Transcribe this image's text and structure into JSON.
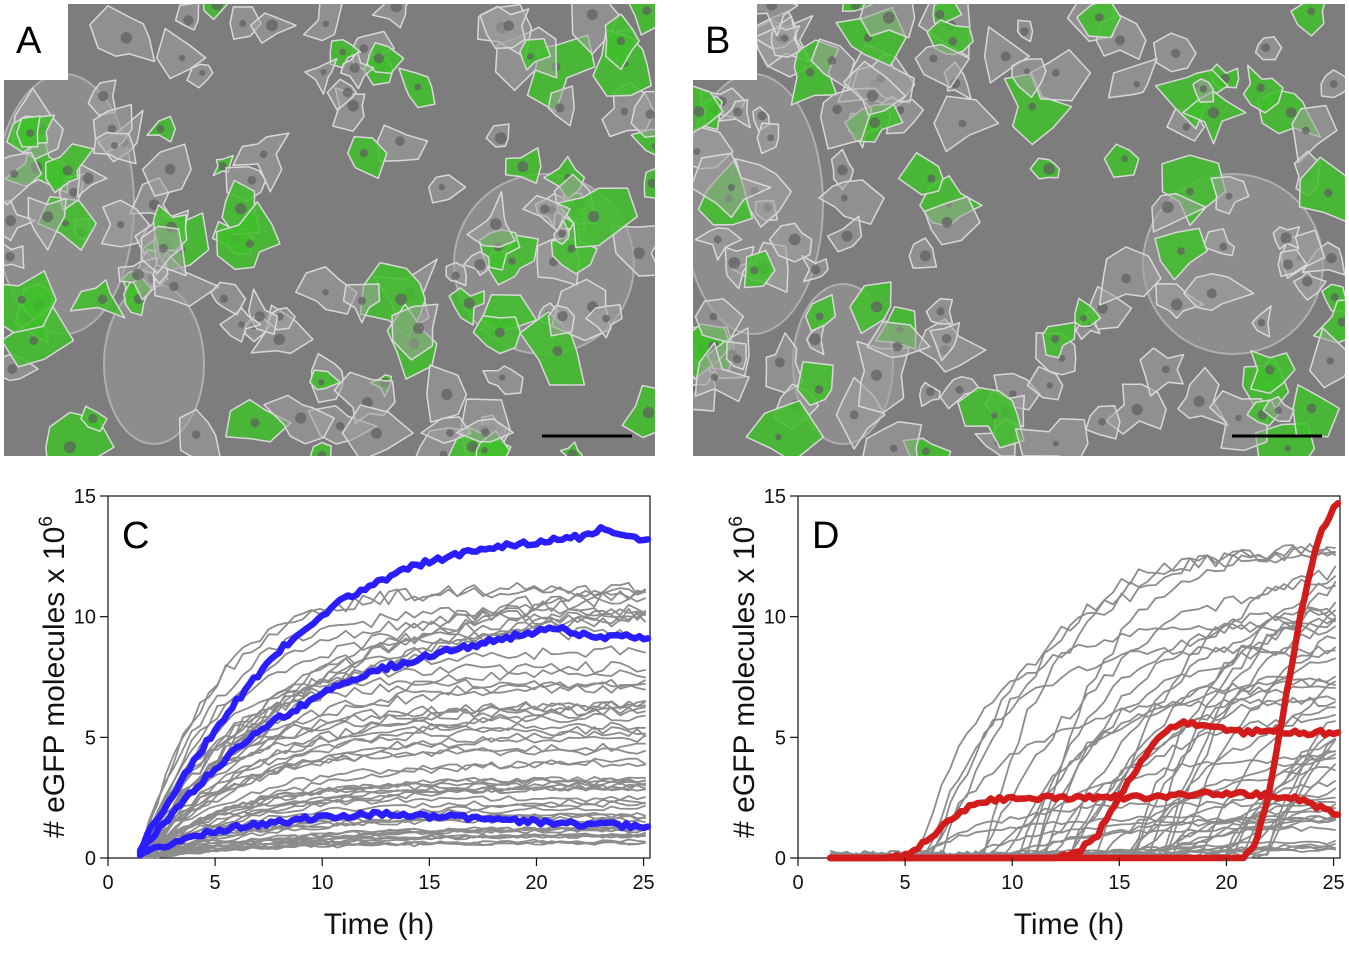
{
  "panels": {
    "A": {
      "letter": "A"
    },
    "B": {
      "letter": "B"
    }
  },
  "colors": {
    "photo_background": "#7d7d7d",
    "cell_green": "#3fbf2a",
    "highlight_blue": "#2a1eff",
    "highlight_red": "#d21c1c",
    "background_traces": "#8c8c8c",
    "scale_bar": "#000000"
  },
  "chart_data": [
    {
      "panel": "C",
      "type": "line",
      "xlabel": "Time (h)",
      "ylabel": "# eGFP molecules x 10",
      "ylabel_superscript": "6",
      "xlim": [
        0,
        25.3
      ],
      "ylim": [
        0,
        15
      ],
      "xticks": [
        0,
        5,
        10,
        15,
        20,
        25
      ],
      "yticks": [
        0,
        5,
        10,
        15
      ],
      "grid": false,
      "background_traces": {
        "count": 60,
        "x_start": 1.5,
        "x_end": 25.2,
        "y_max_range": [
          0.6,
          14.3
        ]
      },
      "series": [
        {
          "color": "#2a1eff",
          "x": [
            1.5,
            2,
            3,
            4,
            5,
            6,
            7,
            8,
            9,
            10,
            11,
            12,
            13,
            14,
            15,
            16,
            17,
            18,
            19,
            20,
            21,
            22,
            23,
            24,
            25.2
          ],
          "values": [
            0.3,
            1.2,
            2.6,
            4.0,
            5.3,
            6.5,
            7.6,
            8.6,
            9.4,
            10.1,
            10.7,
            11.2,
            11.6,
            12.0,
            12.3,
            12.5,
            12.7,
            12.9,
            13.0,
            13.1,
            13.2,
            13.3,
            13.6,
            13.3,
            13.2
          ]
        },
        {
          "color": "#2a1eff",
          "x": [
            1.5,
            2,
            3,
            4,
            5,
            6,
            7,
            8,
            9,
            10,
            11,
            12,
            13,
            14,
            15,
            16,
            17,
            18,
            19,
            20,
            21,
            22,
            23,
            24,
            25.2
          ],
          "values": [
            0.2,
            0.8,
            1.8,
            2.8,
            3.7,
            4.5,
            5.2,
            5.8,
            6.3,
            6.8,
            7.2,
            7.6,
            7.9,
            8.1,
            8.4,
            8.6,
            8.8,
            9.0,
            9.2,
            9.4,
            9.5,
            9.3,
            9.1,
            9.2,
            9.1
          ]
        },
        {
          "color": "#2a1eff",
          "x": [
            1.5,
            2,
            3,
            4,
            5,
            6,
            7,
            8,
            9,
            10,
            11,
            12,
            13,
            14,
            15,
            16,
            17,
            18,
            19,
            20,
            21,
            22,
            23,
            24,
            25.2
          ],
          "values": [
            0.1,
            0.3,
            0.6,
            0.9,
            1.1,
            1.3,
            1.4,
            1.5,
            1.6,
            1.7,
            1.75,
            1.8,
            1.8,
            1.75,
            1.7,
            1.7,
            1.65,
            1.6,
            1.55,
            1.5,
            1.45,
            1.4,
            1.4,
            1.35,
            1.3
          ]
        }
      ]
    },
    {
      "panel": "D",
      "type": "line",
      "xlabel": "Time (h)",
      "ylabel": "# eGFP molecules x 10",
      "ylabel_superscript": "6",
      "xlim": [
        0,
        25.3
      ],
      "ylim": [
        0,
        15
      ],
      "xticks": [
        0,
        5,
        10,
        15,
        20,
        25
      ],
      "yticks": [
        0,
        5,
        10,
        15
      ],
      "grid": false,
      "background_traces": {
        "count": 55,
        "x_start": 1.5,
        "x_end": 25.2,
        "y_max_range": [
          0.3,
          11.8
        ]
      },
      "series": [
        {
          "color": "#d21c1c",
          "x": [
            1.5,
            4,
            5,
            6,
            7,
            8,
            9,
            10,
            12,
            14,
            16,
            18,
            20,
            22,
            23,
            24,
            25.2
          ],
          "values": [
            0,
            0,
            0.1,
            0.7,
            1.5,
            2.1,
            2.4,
            2.5,
            2.5,
            2.5,
            2.5,
            2.6,
            2.7,
            2.6,
            2.5,
            2.2,
            1.8
          ]
        },
        {
          "color": "#d21c1c",
          "x": [
            1.5,
            12,
            13,
            14,
            15,
            16,
            17,
            18,
            19,
            20,
            21,
            22,
            23,
            24,
            25.2
          ],
          "values": [
            0,
            0,
            0.2,
            1.0,
            2.5,
            4.0,
            5.2,
            5.6,
            5.4,
            5.3,
            5.2,
            5.3,
            5.2,
            5.2,
            5.2
          ]
        },
        {
          "color": "#d21c1c",
          "x": [
            1.5,
            20.8,
            21.3,
            21.8,
            22.3,
            22.8,
            23.3,
            23.8,
            24.3,
            24.8,
            25.2
          ],
          "values": [
            0,
            0,
            0.5,
            2.0,
            4.2,
            6.8,
            9.3,
            11.5,
            13.2,
            14.2,
            14.7
          ]
        }
      ]
    }
  ]
}
